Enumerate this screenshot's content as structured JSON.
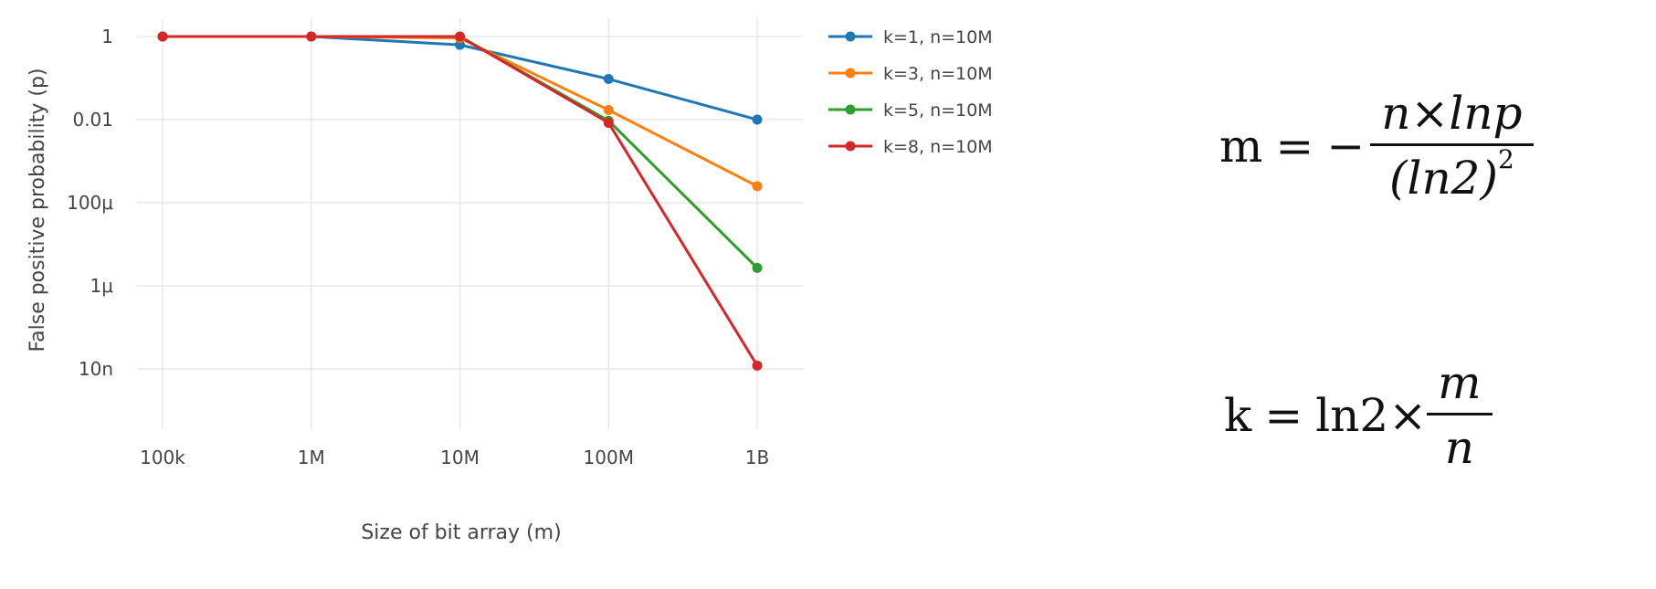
{
  "chart_data": {
    "type": "line",
    "xscale": "log",
    "yscale": "log",
    "xlabel": "Size of bit array (m)",
    "ylabel": "False positive probability (p)",
    "x": [
      100000,
      1000000,
      10000000,
      100000000,
      1000000000
    ],
    "x_tick_labels": [
      "100k",
      "1M",
      "10M",
      "100M",
      "1B"
    ],
    "y_ticks": [
      1,
      0.01,
      0.0001,
      1e-06,
      1e-08
    ],
    "y_tick_labels": [
      "1",
      "0.01",
      "100μ",
      "1μ",
      "10n"
    ],
    "ylim": [
      2e-09,
      1.5
    ],
    "grid": true,
    "legend_position": "top-right",
    "series": [
      {
        "name": "k=1, n=10M",
        "color": "#1f77b4",
        "values": [
          1,
          1,
          0.63,
          0.095,
          0.01
        ]
      },
      {
        "name": "k=3, n=10M",
        "color": "#ff7f0e",
        "values": [
          1,
          1,
          0.92,
          0.017,
          0.00025
        ]
      },
      {
        "name": "k=5, n=10M",
        "color": "#2ca02c",
        "values": [
          1,
          1,
          1,
          0.0094,
          2.7e-06
        ]
      },
      {
        "name": "k=8, n=10M",
        "color": "#d62728",
        "values": [
          1,
          1,
          1,
          0.0084,
          1.2e-08
        ]
      }
    ]
  },
  "formulas": {
    "m_lhs": "m",
    "eq": "=",
    "minus": "−",
    "m_num": "n×lnp",
    "m_den": "(ln2)",
    "m_den_exp": "2",
    "k_lhs": "k",
    "k_mid": "ln2×",
    "k_num": "m",
    "k_den": "n"
  }
}
